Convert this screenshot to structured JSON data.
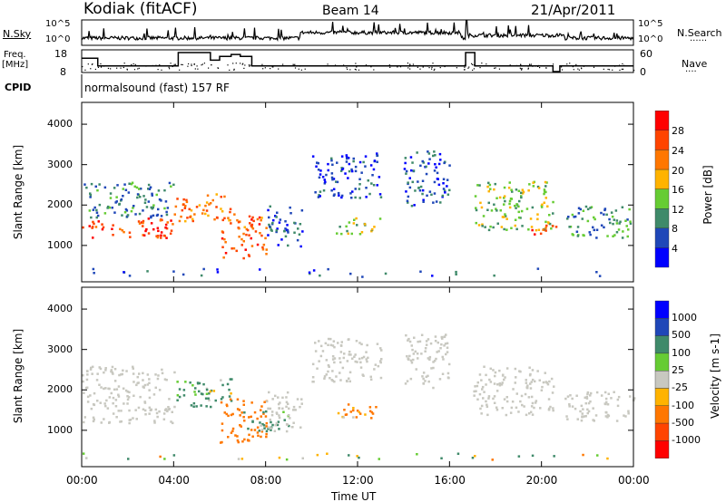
{
  "header": {
    "station": "Kodiak (fitACF)",
    "beam": "Beam 14",
    "date": "21/Apr/2011"
  },
  "strips": {
    "nsky_label": "N.Sky",
    "nsearch_label": "N.Search",
    "nsky_ticks": [
      "10^5",
      "10^0"
    ],
    "freq_label": "Freq.",
    "freq_unit": "[MHz]",
    "freq_ticks": [
      "18",
      "8"
    ],
    "nave_label": "Nave",
    "nave_ticks": [
      "60",
      "0"
    ],
    "cpid_label": "CPID",
    "cpid_text": "normalsound (fast) 157 RF"
  },
  "colors": {
    "power": [
      "#0000ff",
      "#1f47b8",
      "#3f8a6a",
      "#66cc33",
      "#ffb300",
      "#ff7700",
      "#ff4400",
      "#ff0000"
    ],
    "velocity": [
      "#0000ff",
      "#1f47b8",
      "#3f8a6a",
      "#66cc33",
      "#c8c8c0",
      "#ffb300",
      "#ff7700",
      "#ff4400",
      "#ff0000"
    ]
  },
  "chart_data": [
    {
      "type": "line",
      "title": "N.Sky / Freq",
      "x_unit": "hours UT",
      "xlim": [
        0,
        24
      ],
      "freq_steps": [
        [
          0,
          0.7,
          15
        ],
        [
          0.7,
          4.2,
          11
        ],
        [
          4.2,
          5.6,
          18
        ],
        [
          5.6,
          6.0,
          14
        ],
        [
          6.0,
          6.5,
          16
        ],
        [
          6.5,
          6.9,
          17
        ],
        [
          6.9,
          7.4,
          16
        ],
        [
          7.4,
          16.7,
          11
        ],
        [
          16.7,
          17.1,
          18
        ],
        [
          17.1,
          20.5,
          11
        ],
        [
          20.5,
          20.8,
          8
        ],
        [
          20.8,
          24,
          11
        ]
      ],
      "freq_ylim": [
        8,
        18
      ]
    },
    {
      "type": "heatmap",
      "title": "Power",
      "ylabel": "Slant Range [km]",
      "ylim": [
        100,
        4540
      ],
      "yticks": [
        "1000",
        "2000",
        "3000",
        "4000"
      ],
      "colorbar_label": "Power [dB]",
      "colorbar_ticks": [
        "4",
        "8",
        "12",
        "16",
        "20",
        "24",
        "28"
      ],
      "regions": [
        [
          0,
          4,
          1200,
          1700,
          26
        ],
        [
          0,
          4,
          1700,
          2600,
          9
        ],
        [
          4,
          6.5,
          1600,
          2300,
          22
        ],
        [
          6,
          8,
          700,
          1800,
          24
        ],
        [
          8,
          9.6,
          1000,
          2000,
          7
        ],
        [
          10,
          13,
          2200,
          3300,
          5
        ],
        [
          11,
          13,
          1300,
          1700,
          14
        ],
        [
          14,
          16,
          2000,
          3400,
          6
        ],
        [
          17,
          20.5,
          1400,
          2600,
          14
        ],
        [
          19.5,
          20.6,
          1300,
          1600,
          26
        ],
        [
          21,
          24,
          1200,
          2000,
          10
        ],
        [
          0,
          24,
          250,
          450,
          6
        ]
      ]
    },
    {
      "type": "heatmap",
      "title": "Velocity",
      "ylabel": "Slant Range [km]",
      "ylim": [
        100,
        4540
      ],
      "yticks": [
        "1000",
        "2000",
        "3000",
        "4000"
      ],
      "colorbar_label": "Velocity [m s-1]",
      "colorbar_ticks": [
        "1000",
        "500",
        "100",
        "25",
        "-25",
        "-100",
        "-500",
        "-1000"
      ],
      "regions": [
        [
          0,
          4,
          1200,
          2600,
          0
        ],
        [
          4,
          6.5,
          1600,
          2300,
          150
        ],
        [
          6,
          8,
          700,
          1800,
          -300
        ],
        [
          7,
          9,
          1000,
          1500,
          200
        ],
        [
          8,
          9.6,
          1000,
          2000,
          0
        ],
        [
          10,
          13,
          2200,
          3300,
          0
        ],
        [
          11,
          13,
          1300,
          1700,
          -200
        ],
        [
          14,
          16,
          2000,
          3400,
          0
        ],
        [
          17,
          20.5,
          1400,
          2600,
          0
        ],
        [
          21,
          24,
          1200,
          2000,
          0
        ],
        [
          0,
          24,
          250,
          450,
          60
        ]
      ]
    },
    {
      "xlabel": "Time UT",
      "xticks": [
        "00:00",
        "04:00",
        "08:00",
        "12:00",
        "16:00",
        "20:00",
        "00:00"
      ]
    }
  ]
}
